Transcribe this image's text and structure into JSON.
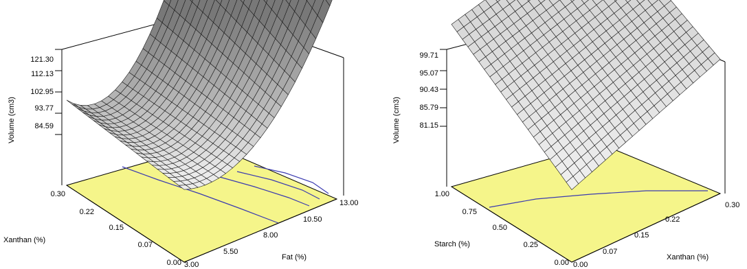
{
  "chart_data": [
    {
      "type": "surface",
      "zlabel": "Volume (cm3)",
      "xlabel": "Fat (%)",
      "ylabel": "Xanthan (%)",
      "x_ticks": [
        "3.00",
        "5.50",
        "8.00",
        "10.50",
        "13.00"
      ],
      "y_ticks": [
        "0.00",
        "0.07",
        "0.15",
        "0.22",
        "0.30"
      ],
      "z_ticks": [
        "84.59",
        "93.77",
        "102.95",
        "112.13",
        "121.30"
      ],
      "xlim": [
        3.0,
        13.0
      ],
      "ylim": [
        0.0,
        0.3
      ],
      "zlim": [
        84.59,
        121.3
      ],
      "corner_values": {
        "fat_3_xanthan_0": 84.6,
        "fat_13_xanthan_0": 107.0,
        "fat_3_xanthan_0.30": 88.0,
        "fat_13_xanthan_0.30": 121.3
      },
      "surface_color": "#c8c8c8",
      "floor_color": "#f5f58a",
      "contour_color": "#3a3ab0"
    },
    {
      "type": "surface",
      "zlabel": "Volume (cm3)",
      "xlabel": "Xanthan (%)",
      "ylabel": "Starch (%)",
      "x_ticks": [
        "0.00",
        "0.07",
        "0.15",
        "0.22",
        "0.30"
      ],
      "y_ticks": [
        "0.00",
        "0.25",
        "0.50",
        "0.75",
        "1.00"
      ],
      "z_ticks": [
        "81.15",
        "85.79",
        "90.43",
        "95.07",
        "99.71"
      ],
      "xlim": [
        0.0,
        0.3
      ],
      "ylim": [
        0.0,
        1.0
      ],
      "zlim": [
        81.15,
        99.71
      ],
      "corner_values": {
        "xanthan_0_starch_0": 81.2,
        "xanthan_0.30_starch_0": 90.0,
        "xanthan_0_starch_1": 94.0,
        "xanthan_0.30_starch_1": 99.7
      },
      "surface_color": "#e6e6e6",
      "floor_color": "#f5f58a",
      "contour_color": "#3a3ab0"
    }
  ]
}
